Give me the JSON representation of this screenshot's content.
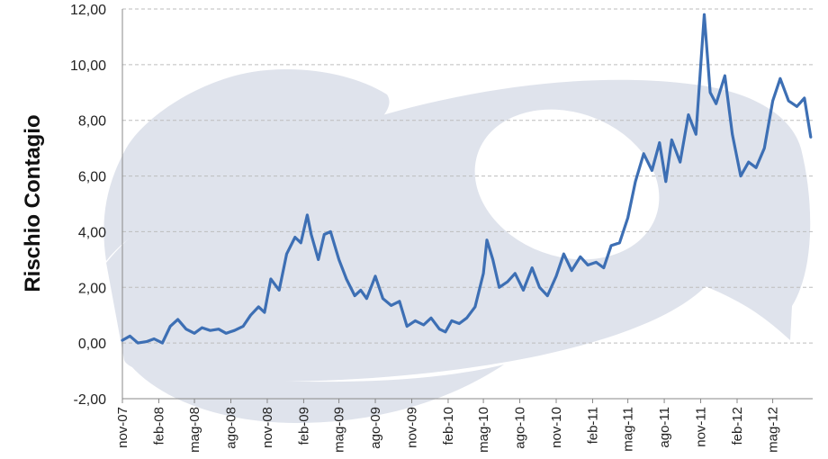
{
  "chart_data": {
    "type": "line",
    "title": "",
    "xlabel": "",
    "ylabel": "Rischio Contagio",
    "ylim": [
      -2,
      12
    ],
    "yticks": [
      -2,
      0,
      2,
      4,
      6,
      8,
      10,
      12
    ],
    "ytick_labels": [
      "-2,00",
      "0,00",
      "2,00",
      "4,00",
      "6,00",
      "8,00",
      "10,00",
      "12,00"
    ],
    "x_start": "2007-11",
    "x_end": "2012-08",
    "xtick_labels": [
      "nov-07",
      "feb-08",
      "mag-08",
      "ago-08",
      "nov-08",
      "feb-09",
      "mag-09",
      "ago-09",
      "nov-09",
      "feb-10",
      "mag-10",
      "ago-10",
      "nov-10",
      "feb-11",
      "mag-11",
      "ago-11",
      "nov-11",
      "feb-12",
      "mag-12"
    ],
    "grid": "horizontal-dashed",
    "legend": "none",
    "line_color": "#3d6fb4",
    "series": [
      {
        "x": [
          "2007-11-01",
          "2007-11-20",
          "2007-12-10",
          "2008-01-01",
          "2008-01-20",
          "2008-02-10",
          "2008-03-01",
          "2008-03-20",
          "2008-04-10",
          "2008-05-01",
          "2008-05-20",
          "2008-06-10",
          "2008-07-01",
          "2008-07-20",
          "2008-08-10",
          "2008-09-01",
          "2008-09-20",
          "2008-10-10",
          "2008-10-25",
          "2008-11-10",
          "2008-12-01",
          "2008-12-20",
          "2009-01-10",
          "2009-01-25",
          "2009-02-10",
          "2009-02-20",
          "2009-03-10",
          "2009-03-25",
          "2009-04-10",
          "2009-05-01",
          "2009-05-20",
          "2009-06-10",
          "2009-06-25",
          "2009-07-10",
          "2009-08-01",
          "2009-08-20",
          "2009-09-10",
          "2009-10-01",
          "2009-10-20",
          "2009-11-10",
          "2009-12-01",
          "2009-12-20",
          "2010-01-10",
          "2010-01-25",
          "2010-02-10",
          "2010-03-01",
          "2010-03-20",
          "2010-04-10",
          "2010-05-01",
          "2010-05-10",
          "2010-05-25",
          "2010-06-10",
          "2010-07-01",
          "2010-07-20",
          "2010-08-10",
          "2010-09-01",
          "2010-09-20",
          "2010-10-10",
          "2010-11-01",
          "2010-11-20",
          "2010-12-10",
          "2011-01-01",
          "2011-01-20",
          "2011-02-10",
          "2011-03-01",
          "2011-03-20",
          "2011-04-10",
          "2011-05-01",
          "2011-05-20",
          "2011-06-10",
          "2011-07-01",
          "2011-07-20",
          "2011-08-05",
          "2011-08-20",
          "2011-09-10",
          "2011-10-01",
          "2011-10-20",
          "2011-11-10",
          "2011-11-25",
          "2011-12-10",
          "2012-01-01",
          "2012-01-20",
          "2012-02-10",
          "2012-03-01",
          "2012-03-20",
          "2012-04-10",
          "2012-05-01",
          "2012-05-20",
          "2012-06-10",
          "2012-07-01",
          "2012-07-20",
          "2012-08-05"
        ],
        "y": [
          0.1,
          0.25,
          0.0,
          0.05,
          0.15,
          0.0,
          0.6,
          0.85,
          0.5,
          0.35,
          0.55,
          0.45,
          0.5,
          0.35,
          0.45,
          0.6,
          1.0,
          1.3,
          1.1,
          2.3,
          1.9,
          3.2,
          3.8,
          3.6,
          4.6,
          3.9,
          3.0,
          3.9,
          4.0,
          3.0,
          2.3,
          1.7,
          1.9,
          1.6,
          2.4,
          1.6,
          1.35,
          1.5,
          0.6,
          0.8,
          0.65,
          0.9,
          0.5,
          0.4,
          0.8,
          0.7,
          0.9,
          1.3,
          2.5,
          3.7,
          3.0,
          2.0,
          2.2,
          2.5,
          1.9,
          2.7,
          2.0,
          1.7,
          2.4,
          3.2,
          2.6,
          3.1,
          2.8,
          2.9,
          2.7,
          3.5,
          3.6,
          4.5,
          5.8,
          6.8,
          6.2,
          7.2,
          5.8,
          7.3,
          6.5,
          8.2,
          7.5,
          11.8,
          9.0,
          8.6,
          9.6,
          7.5,
          6.0,
          6.5,
          6.3,
          7.0,
          8.7,
          9.5,
          8.7,
          8.5,
          8.8,
          7.4
        ]
      }
    ]
  }
}
